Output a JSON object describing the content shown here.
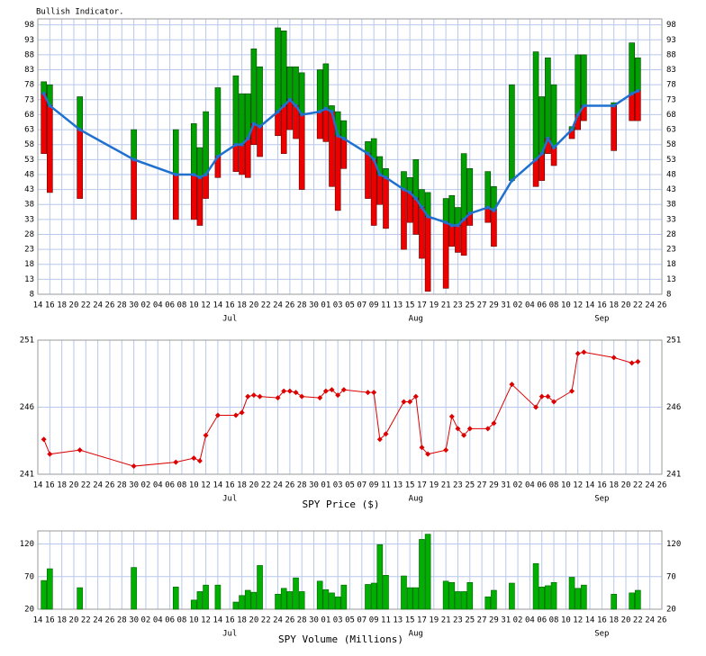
{
  "chart_data": [
    {
      "type": "indicator",
      "title": "Bullish Indicator.",
      "x": [
        1,
        2,
        7,
        16,
        23,
        26,
        27,
        28,
        30,
        33,
        34,
        35,
        36,
        37,
        40,
        41,
        42,
        43,
        44,
        47,
        48,
        49,
        50,
        51,
        55,
        56,
        57,
        58,
        61,
        62,
        63,
        64,
        65,
        68,
        69,
        70,
        71,
        72,
        75,
        76,
        79,
        83,
        84,
        85,
        86,
        89,
        90,
        91,
        96,
        99,
        100
      ],
      "high": [
        79,
        78,
        74,
        63,
        63,
        65,
        57,
        69,
        77,
        81,
        75,
        75,
        90,
        84,
        97,
        96,
        84,
        84,
        82,
        83,
        85,
        71,
        69,
        66,
        59,
        60,
        54,
        50,
        49,
        47,
        53,
        43,
        42,
        40,
        41,
        37,
        55,
        50,
        49,
        44,
        78,
        89,
        74,
        87,
        78,
        64,
        88,
        88,
        72,
        92,
        87
      ],
      "values": [
        75,
        71,
        63,
        53,
        48,
        48,
        47,
        48,
        54,
        58,
        58,
        60,
        65,
        64,
        69,
        71,
        73,
        71,
        68,
        69,
        70,
        69,
        61,
        60,
        55,
        53,
        48,
        47,
        43,
        42,
        40,
        37,
        34,
        32,
        31,
        31,
        33,
        35,
        37,
        36,
        46,
        53,
        55,
        60,
        57,
        63,
        68,
        71,
        71,
        75,
        76
      ],
      "low": [
        55,
        42,
        40,
        33,
        33,
        33,
        31,
        40,
        47,
        49,
        48,
        47,
        58,
        54,
        61,
        55,
        63,
        60,
        43,
        60,
        59,
        44,
        36,
        50,
        40,
        31,
        38,
        30,
        23,
        32,
        28,
        20,
        9,
        10,
        24,
        22,
        21,
        31,
        32,
        24,
        46,
        44,
        46,
        55,
        51,
        60,
        63,
        66,
        56,
        66,
        66
      ],
      "up_color": "#00a000",
      "down_color": "#ee0000",
      "line_color": "#2070d0",
      "xlim": [
        0,
        104
      ],
      "ylim": [
        8,
        100
      ],
      "yticks": [
        8,
        13,
        18,
        23,
        28,
        33,
        38,
        43,
        48,
        53,
        58,
        63,
        68,
        73,
        78,
        83,
        88,
        93,
        98
      ],
      "xticks": [
        {
          "value": 0,
          "label": "14"
        },
        {
          "value": 2,
          "label": "16"
        },
        {
          "value": 4,
          "label": "18"
        },
        {
          "value": 6,
          "label": "20"
        },
        {
          "value": 8,
          "label": "22"
        },
        {
          "value": 10,
          "label": "24"
        },
        {
          "value": 12,
          "label": "26"
        },
        {
          "value": 14,
          "label": "28"
        },
        {
          "value": 16,
          "label": "30"
        },
        {
          "value": 18,
          "label": "02"
        },
        {
          "value": 20,
          "label": "04"
        },
        {
          "value": 22,
          "label": "06"
        },
        {
          "value": 24,
          "label": "08"
        },
        {
          "value": 26,
          "label": "10"
        },
        {
          "value": 28,
          "label": "12"
        },
        {
          "value": 30,
          "label": "14"
        },
        {
          "value": 32,
          "label": "16"
        },
        {
          "value": 34,
          "label": "18"
        },
        {
          "value": 36,
          "label": "20"
        },
        {
          "value": 38,
          "label": "22"
        },
        {
          "value": 40,
          "label": "24"
        },
        {
          "value": 42,
          "label": "26"
        },
        {
          "value": 44,
          "label": "28"
        },
        {
          "value": 46,
          "label": "30"
        },
        {
          "value": 48,
          "label": "01"
        },
        {
          "value": 50,
          "label": "03"
        },
        {
          "value": 52,
          "label": "05"
        },
        {
          "value": 54,
          "label": "07"
        },
        {
          "value": 56,
          "label": "09"
        },
        {
          "value": 58,
          "label": "11"
        },
        {
          "value": 60,
          "label": "13"
        },
        {
          "value": 62,
          "label": "15"
        },
        {
          "value": 64,
          "label": "17"
        },
        {
          "value": 66,
          "label": "19"
        },
        {
          "value": 68,
          "label": "21"
        },
        {
          "value": 70,
          "label": "23"
        },
        {
          "value": 72,
          "label": "25"
        },
        {
          "value": 74,
          "label": "27"
        },
        {
          "value": 76,
          "label": "29"
        },
        {
          "value": 78,
          "label": "31"
        },
        {
          "value": 80,
          "label": "02"
        },
        {
          "value": 82,
          "label": "04"
        },
        {
          "value": 84,
          "label": "06"
        },
        {
          "value": 86,
          "label": "08"
        },
        {
          "value": 88,
          "label": "10"
        },
        {
          "value": 90,
          "label": "12"
        },
        {
          "value": 92,
          "label": "14"
        },
        {
          "value": 94,
          "label": "16"
        },
        {
          "value": 96,
          "label": "18"
        },
        {
          "value": 98,
          "label": "20"
        },
        {
          "value": 100,
          "label": "22"
        },
        {
          "value": 102,
          "label": "24"
        },
        {
          "value": 104,
          "label": "26"
        }
      ],
      "month_ticks": [
        {
          "value": 32,
          "label": "Jul"
        },
        {
          "value": 63,
          "label": "Aug"
        },
        {
          "value": 94,
          "label": "Sep"
        }
      ],
      "grid": true
    },
    {
      "type": "line",
      "xlabel": "SPY Price ($)",
      "x": [
        1,
        2,
        7,
        16,
        23,
        26,
        27,
        28,
        30,
        33,
        34,
        35,
        36,
        37,
        40,
        41,
        42,
        43,
        44,
        47,
        48,
        49,
        50,
        51,
        55,
        56,
        57,
        58,
        61,
        62,
        63,
        64,
        65,
        68,
        69,
        70,
        71,
        72,
        75,
        76,
        79,
        83,
        84,
        85,
        86,
        89,
        90,
        91,
        96,
        99,
        100
      ],
      "values": [
        243.6,
        242.5,
        242.8,
        241.6,
        241.9,
        242.2,
        242.0,
        243.9,
        245.4,
        245.4,
        245.6,
        246.8,
        246.9,
        246.8,
        246.7,
        247.2,
        247.2,
        247.1,
        246.8,
        246.7,
        247.2,
        247.3,
        246.9,
        247.3,
        247.1,
        247.1,
        243.6,
        244.0,
        246.4,
        246.4,
        246.8,
        243.0,
        242.5,
        242.8,
        245.3,
        244.4,
        243.9,
        244.4,
        244.4,
        244.8,
        247.7,
        246.0,
        246.8,
        246.8,
        246.4,
        247.2,
        250.0,
        250.1,
        249.7,
        249.3,
        249.4
      ],
      "color": "#dd0000",
      "xlim": [
        0,
        104
      ],
      "ylim": [
        241,
        251
      ],
      "yticks": [
        241,
        246,
        251
      ],
      "xticks": [
        {
          "value": 0,
          "label": "14"
        },
        {
          "value": 2,
          "label": "16"
        },
        {
          "value": 4,
          "label": "18"
        },
        {
          "value": 6,
          "label": "20"
        },
        {
          "value": 8,
          "label": "22"
        },
        {
          "value": 10,
          "label": "24"
        },
        {
          "value": 12,
          "label": "26"
        },
        {
          "value": 14,
          "label": "28"
        },
        {
          "value": 16,
          "label": "30"
        },
        {
          "value": 18,
          "label": "02"
        },
        {
          "value": 20,
          "label": "04"
        },
        {
          "value": 22,
          "label": "06"
        },
        {
          "value": 24,
          "label": "08"
        },
        {
          "value": 26,
          "label": "10"
        },
        {
          "value": 28,
          "label": "12"
        },
        {
          "value": 30,
          "label": "14"
        },
        {
          "value": 32,
          "label": "16"
        },
        {
          "value": 34,
          "label": "18"
        },
        {
          "value": 36,
          "label": "20"
        },
        {
          "value": 38,
          "label": "22"
        },
        {
          "value": 40,
          "label": "24"
        },
        {
          "value": 42,
          "label": "26"
        },
        {
          "value": 44,
          "label": "28"
        },
        {
          "value": 46,
          "label": "30"
        },
        {
          "value": 48,
          "label": "01"
        },
        {
          "value": 50,
          "label": "03"
        },
        {
          "value": 52,
          "label": "05"
        },
        {
          "value": 54,
          "label": "07"
        },
        {
          "value": 56,
          "label": "09"
        },
        {
          "value": 58,
          "label": "11"
        },
        {
          "value": 60,
          "label": "13"
        },
        {
          "value": 62,
          "label": "15"
        },
        {
          "value": 64,
          "label": "17"
        },
        {
          "value": 66,
          "label": "19"
        },
        {
          "value": 68,
          "label": "21"
        },
        {
          "value": 70,
          "label": "23"
        },
        {
          "value": 72,
          "label": "25"
        },
        {
          "value": 74,
          "label": "27"
        },
        {
          "value": 76,
          "label": "29"
        },
        {
          "value": 78,
          "label": "31"
        },
        {
          "value": 80,
          "label": "02"
        },
        {
          "value": 82,
          "label": "04"
        },
        {
          "value": 84,
          "label": "06"
        },
        {
          "value": 86,
          "label": "08"
        },
        {
          "value": 88,
          "label": "10"
        },
        {
          "value": 90,
          "label": "12"
        },
        {
          "value": 92,
          "label": "14"
        },
        {
          "value": 94,
          "label": "16"
        },
        {
          "value": 96,
          "label": "18"
        },
        {
          "value": 98,
          "label": "20"
        },
        {
          "value": 100,
          "label": "22"
        },
        {
          "value": 102,
          "label": "24"
        },
        {
          "value": 104,
          "label": "26"
        }
      ],
      "month_ticks": [
        {
          "value": 32,
          "label": "Jul"
        },
        {
          "value": 63,
          "label": "Aug"
        },
        {
          "value": 94,
          "label": "Sep"
        }
      ],
      "grid": true
    },
    {
      "type": "bar",
      "xlabel": "SPY Volume (Millions)",
      "x": [
        1,
        2,
        7,
        16,
        23,
        26,
        27,
        28,
        30,
        33,
        34,
        35,
        36,
        37,
        40,
        41,
        42,
        43,
        44,
        47,
        48,
        49,
        50,
        51,
        55,
        56,
        57,
        58,
        61,
        62,
        63,
        64,
        65,
        68,
        69,
        70,
        71,
        72,
        75,
        76,
        79,
        83,
        84,
        85,
        86,
        89,
        90,
        91,
        96,
        99,
        100
      ],
      "values": [
        64,
        82,
        53,
        84,
        54,
        34,
        47,
        57,
        57,
        31,
        41,
        49,
        46,
        87,
        43,
        52,
        47,
        68,
        47,
        63,
        50,
        45,
        39,
        57,
        58,
        60,
        119,
        72,
        71,
        53,
        53,
        127,
        135,
        63,
        61,
        47,
        47,
        61,
        39,
        49,
        60,
        90,
        54,
        56,
        61,
        69,
        52,
        57,
        43,
        45,
        49
      ],
      "color": "#00b000",
      "xlim": [
        0,
        104
      ],
      "ylim": [
        20,
        140
      ],
      "yticks": [
        20,
        70,
        120
      ],
      "xticks": [
        {
          "value": 0,
          "label": "14"
        },
        {
          "value": 2,
          "label": "16"
        },
        {
          "value": 4,
          "label": "18"
        },
        {
          "value": 6,
          "label": "20"
        },
        {
          "value": 8,
          "label": "22"
        },
        {
          "value": 10,
          "label": "24"
        },
        {
          "value": 12,
          "label": "26"
        },
        {
          "value": 14,
          "label": "28"
        },
        {
          "value": 16,
          "label": "30"
        },
        {
          "value": 18,
          "label": "02"
        },
        {
          "value": 20,
          "label": "04"
        },
        {
          "value": 22,
          "label": "06"
        },
        {
          "value": 24,
          "label": "08"
        },
        {
          "value": 26,
          "label": "10"
        },
        {
          "value": 28,
          "label": "12"
        },
        {
          "value": 30,
          "label": "14"
        },
        {
          "value": 32,
          "label": "16"
        },
        {
          "value": 34,
          "label": "18"
        },
        {
          "value": 36,
          "label": "20"
        },
        {
          "value": 38,
          "label": "22"
        },
        {
          "value": 40,
          "label": "24"
        },
        {
          "value": 42,
          "label": "26"
        },
        {
          "value": 44,
          "label": "28"
        },
        {
          "value": 46,
          "label": "30"
        },
        {
          "value": 48,
          "label": "01"
        },
        {
          "value": 50,
          "label": "03"
        },
        {
          "value": 52,
          "label": "05"
        },
        {
          "value": 54,
          "label": "07"
        },
        {
          "value": 56,
          "label": "09"
        },
        {
          "value": 58,
          "label": "11"
        },
        {
          "value": 60,
          "label": "13"
        },
        {
          "value": 62,
          "label": "15"
        },
        {
          "value": 64,
          "label": "17"
        },
        {
          "value": 66,
          "label": "19"
        },
        {
          "value": 68,
          "label": "21"
        },
        {
          "value": 70,
          "label": "23"
        },
        {
          "value": 72,
          "label": "25"
        },
        {
          "value": 74,
          "label": "27"
        },
        {
          "value": 76,
          "label": "29"
        },
        {
          "value": 78,
          "label": "31"
        },
        {
          "value": 80,
          "label": "02"
        },
        {
          "value": 82,
          "label": "04"
        },
        {
          "value": 84,
          "label": "06"
        },
        {
          "value": 86,
          "label": "08"
        },
        {
          "value": 88,
          "label": "10"
        },
        {
          "value": 90,
          "label": "12"
        },
        {
          "value": 92,
          "label": "14"
        },
        {
          "value": 94,
          "label": "16"
        },
        {
          "value": 96,
          "label": "18"
        },
        {
          "value": 98,
          "label": "20"
        },
        {
          "value": 100,
          "label": "22"
        },
        {
          "value": 102,
          "label": "24"
        },
        {
          "value": 104,
          "label": "26"
        }
      ],
      "month_ticks": [
        {
          "value": 32,
          "label": "Jul"
        },
        {
          "value": 63,
          "label": "Aug"
        },
        {
          "value": 94,
          "label": "Sep"
        }
      ],
      "grid": true
    }
  ]
}
